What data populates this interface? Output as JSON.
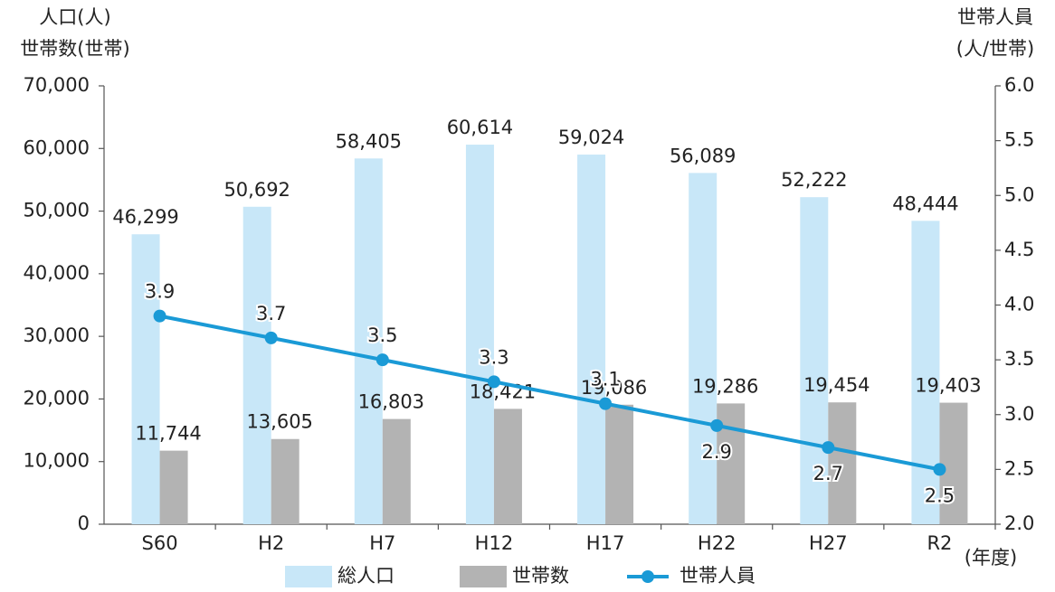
{
  "chart_data": {
    "type": "bar_line",
    "ylabel": [
      "人口(人)",
      "世帯数(世帯)"
    ],
    "y2label": [
      "世帯人員",
      "(人/世帯)"
    ],
    "xlabel": "(年度)",
    "categories": [
      "S60",
      "H2",
      "H7",
      "H12",
      "H17",
      "H22",
      "H27",
      "R2"
    ],
    "series": [
      {
        "name": "総人口",
        "type": "bar",
        "color": "#c8e7f8",
        "values": [
          46299,
          50692,
          58405,
          60614,
          59024,
          56089,
          52222,
          48444
        ],
        "value_labels": [
          "46,299",
          "50,692",
          "58,405",
          "60,614",
          "59,024",
          "56,089",
          "52,222",
          "48,444"
        ]
      },
      {
        "name": "世帯数",
        "type": "bar",
        "color": "#b3b3b3",
        "values": [
          11744,
          13605,
          16803,
          18421,
          19086,
          19286,
          19454,
          19403
        ],
        "value_labels": [
          "11,744",
          "13,605",
          "16,803",
          "18,421",
          "19,086",
          "19,286",
          "19,454",
          "19,403"
        ]
      },
      {
        "name": "世帯人員",
        "type": "line",
        "axis": "y2",
        "color": "#1a9ad6",
        "values": [
          3.9,
          3.7,
          3.5,
          3.3,
          3.1,
          2.9,
          2.7,
          2.5
        ]
      }
    ],
    "ylim": [
      0,
      70000
    ],
    "yticks": [
      0,
      {
        "value": 10000,
        "label": "10,000"
      },
      {
        "value": 20000,
        "label": "20,000"
      },
      {
        "value": 30000,
        "label": "30,000"
      },
      {
        "value": 40000,
        "label": "40,000"
      },
      {
        "value": 50000,
        "label": "50,000"
      },
      {
        "value": 60000,
        "label": "60,000"
      },
      {
        "value": 70000,
        "label": "70,000"
      }
    ],
    "y2lim": [
      2.0,
      6.0
    ],
    "y2ticks": [
      {
        "value": 2.0,
        "label": "2.0"
      },
      2.5,
      {
        "value": 3.0,
        "label": "3.0"
      },
      3.5,
      {
        "value": 4.0,
        "label": "4.0"
      },
      4.5,
      {
        "value": 5.0,
        "label": "5.0"
      },
      5.5,
      {
        "value": 6.0,
        "label": "6.0"
      }
    ],
    "legend": "bottom"
  }
}
